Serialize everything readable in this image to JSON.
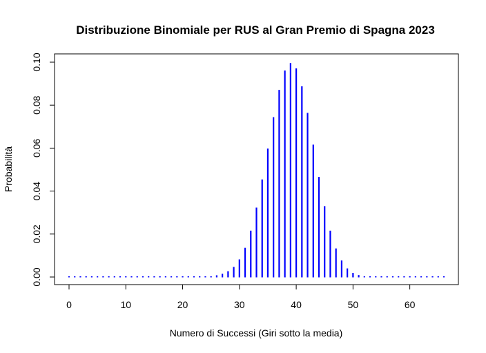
{
  "chart_data": {
    "type": "bar",
    "title": "Distribuzione Binomiale per RUS al Gran Premio di Spagna 2023",
    "xlabel": "Numero di Successi (Giri sotto la media)",
    "ylabel": "Probabilità",
    "xlim": [
      0,
      66
    ],
    "ylim": [
      0,
      0.1
    ],
    "x_ticks": [
      "0",
      "10",
      "20",
      "30",
      "40",
      "50",
      "60"
    ],
    "y_ticks": [
      "0.00",
      "0.02",
      "0.04",
      "0.06",
      "0.08",
      "0.10"
    ],
    "grid": false,
    "colors": {
      "bars": "#0000ff",
      "axes": "#000000"
    },
    "series": [
      {
        "x": [
          0,
          1,
          2,
          3,
          4,
          5,
          6,
          7,
          8,
          9,
          10,
          11,
          12,
          13,
          14,
          15,
          16,
          17,
          18,
          19,
          20,
          21,
          22,
          23,
          24,
          25,
          26,
          27,
          28,
          29,
          30,
          31,
          32,
          33,
          34,
          35,
          36,
          37,
          38,
          39,
          40,
          41,
          42,
          43,
          44,
          45,
          46,
          47,
          48,
          49,
          50,
          51,
          52,
          53,
          54,
          55,
          56,
          57,
          58,
          59,
          60,
          61,
          62,
          63,
          64,
          65,
          66
        ],
        "values": [
          0,
          0,
          0,
          0,
          0,
          0,
          0,
          0,
          0,
          0,
          0,
          0,
          0,
          0,
          0,
          0,
          0,
          0,
          0,
          0,
          0,
          0,
          0,
          0,
          0,
          0.0003,
          0.0008,
          0.0015,
          0.0027,
          0.0047,
          0.0082,
          0.0136,
          0.0216,
          0.0323,
          0.0454,
          0.0598,
          0.0744,
          0.0871,
          0.0961,
          0.0996,
          0.0971,
          0.0888,
          0.0764,
          0.0616,
          0.0466,
          0.033,
          0.0216,
          0.0133,
          0.0077,
          0.004,
          0.0019,
          0.0009,
          0.0003,
          0.0001,
          0,
          0,
          0,
          0,
          0,
          0,
          0,
          0,
          0,
          0,
          0,
          0,
          0
        ]
      }
    ]
  }
}
